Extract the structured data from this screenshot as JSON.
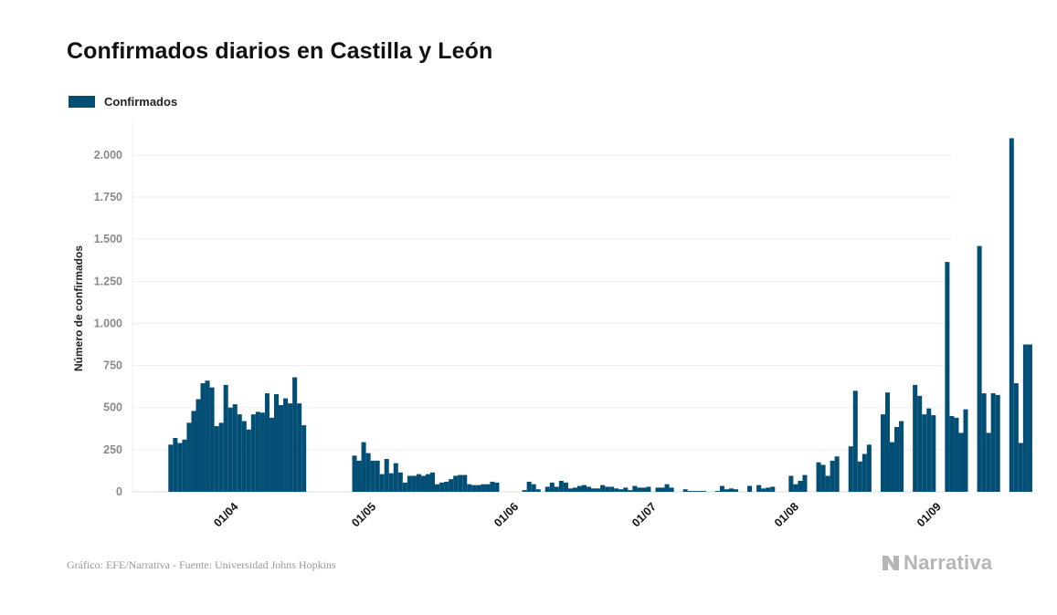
{
  "title": "Confirmados diarios en Castilla y León",
  "legend": {
    "label": "Confirmados",
    "color": "#034e74"
  },
  "footer": "Gráfico: EFE/Narrativa - Fuente: Universidad Johns Hopkins",
  "brand": {
    "name": "Narrativa",
    "icon": "narrativa-logo-icon"
  },
  "chart_data": {
    "type": "bar",
    "title": "Confirmados diarios en Castilla y León",
    "xlabel": "",
    "ylabel": "Número de confirmados",
    "ylim": [
      0,
      2200
    ],
    "yticks": [
      0,
      250,
      500,
      750,
      1000,
      1250,
      1500,
      1750,
      2000
    ],
    "ytick_labels": [
      "0",
      "250",
      "500",
      "750",
      "1.000",
      "1.250",
      "1.500",
      "1.750",
      "2.000"
    ],
    "grid": true,
    "legend_position": "top-left",
    "start_date": "2020-03-18",
    "xtick_labels": [
      {
        "label": "01/04",
        "index": 14
      },
      {
        "label": "01/05",
        "index": 44
      },
      {
        "label": "01/06",
        "index": 75
      },
      {
        "label": "01/07",
        "index": 105
      },
      {
        "label": "01/08",
        "index": 136
      },
      {
        "label": "01/09",
        "index": 167
      }
    ],
    "series": [
      {
        "name": "Confirmados",
        "values": [
          280,
          320,
          290,
          310,
          410,
          480,
          550,
          645,
          660,
          620,
          390,
          410,
          635,
          500,
          520,
          460,
          420,
          370,
          460,
          475,
          470,
          585,
          440,
          580,
          515,
          555,
          525,
          680,
          525,
          395,
          0,
          0,
          0,
          0,
          0,
          0,
          0,
          0,
          0,
          0,
          215,
          185,
          295,
          230,
          185,
          185,
          105,
          195,
          110,
          170,
          115,
          55,
          95,
          95,
          105,
          95,
          105,
          115,
          45,
          55,
          60,
          75,
          95,
          100,
          100,
          45,
          40,
          40,
          45,
          45,
          60,
          55,
          0,
          0,
          0,
          0,
          0,
          10,
          60,
          45,
          15,
          0,
          30,
          55,
          30,
          65,
          55,
          20,
          25,
          35,
          40,
          30,
          20,
          20,
          40,
          30,
          30,
          20,
          15,
          25,
          10,
          35,
          25,
          25,
          30,
          0,
          25,
          25,
          45,
          25,
          0,
          0,
          15,
          5,
          5,
          5,
          5,
          0,
          0,
          5,
          35,
          15,
          20,
          15,
          0,
          0,
          35,
          0,
          40,
          20,
          25,
          30,
          0,
          0,
          0,
          95,
          45,
          65,
          100,
          0,
          0,
          175,
          160,
          95,
          185,
          210,
          0,
          0,
          270,
          600,
          180,
          225,
          280,
          0,
          0,
          460,
          590,
          295,
          385,
          420,
          0,
          0,
          635,
          570,
          460,
          495,
          455,
          0,
          0,
          1365,
          450,
          440,
          350,
          490,
          0,
          0,
          1460,
          585,
          350,
          585,
          575,
          0,
          0,
          2100,
          645,
          290,
          875,
          875
        ]
      }
    ]
  }
}
